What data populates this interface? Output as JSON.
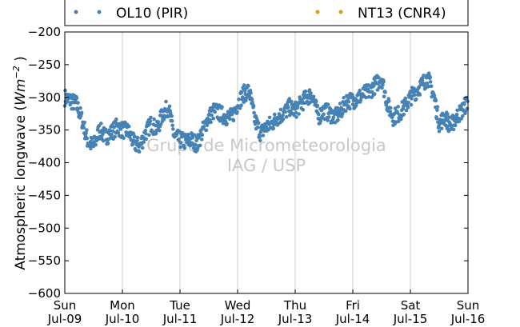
{
  "chart_data": {
    "type": "scatter",
    "ylabel": "Atmospheric longwave",
    "ylabel_unit_base": "Wm",
    "ylabel_unit_exp": "−2",
    "ylim": [
      -600,
      -200
    ],
    "yticks": [
      -200,
      -250,
      -300,
      -350,
      -400,
      -450,
      -500,
      -550,
      -600
    ],
    "xlim": [
      "2012-07-09",
      "2012-07-16"
    ],
    "xticks": [
      {
        "day": "Sun",
        "date": "Jul-09"
      },
      {
        "day": "Mon",
        "date": "Jul-10"
      },
      {
        "day": "Tue",
        "date": "Jul-11"
      },
      {
        "day": "Wed",
        "date": "Jul-12"
      },
      {
        "day": "Thu",
        "date": "Jul-13"
      },
      {
        "day": "Fri",
        "date": "Jul-14"
      },
      {
        "day": "Sat",
        "date": "Jul-15"
      },
      {
        "day": "Sun",
        "date": "Jul-16"
      }
    ],
    "grid": "vertical",
    "legend_position": "top",
    "watermark": [
      "Grupo de Micrometeorologia",
      "IAG / USP"
    ],
    "series": [
      {
        "name": "OL10 (PIR)",
        "color": "#4682b4",
        "x_day": [
          0.0,
          0.1,
          0.2,
          0.3,
          0.4,
          0.5,
          0.6,
          0.7,
          0.8,
          0.9,
          1.0,
          1.1,
          1.2,
          1.3,
          1.4,
          1.5,
          1.6,
          1.7,
          1.8,
          1.9,
          2.0,
          2.1,
          2.2,
          2.3,
          2.4,
          2.5,
          2.6,
          2.7,
          2.8,
          2.9,
          3.0,
          3.1,
          3.2,
          3.3,
          3.4,
          3.5,
          3.6,
          3.7,
          3.8,
          3.9,
          4.0,
          4.1,
          4.2,
          4.3,
          4.4,
          4.5,
          4.6,
          4.7,
          4.8,
          4.9,
          5.0,
          5.1,
          5.2,
          5.3,
          5.4,
          5.5,
          5.6,
          5.7,
          5.8,
          5.9,
          6.0,
          6.1,
          6.2,
          6.3,
          6.4,
          6.5,
          6.6,
          6.7,
          6.8,
          6.9,
          7.0
        ],
        "y": [
          -300,
          -305,
          -310,
          -335,
          -368,
          -375,
          -350,
          -360,
          -355,
          -345,
          -350,
          -352,
          -370,
          -375,
          -355,
          -340,
          -350,
          -325,
          -315,
          -360,
          -365,
          -368,
          -365,
          -372,
          -350,
          -330,
          -320,
          -325,
          -330,
          -330,
          -310,
          -295,
          -290,
          -335,
          -355,
          -345,
          -340,
          -330,
          -325,
          -315,
          -320,
          -310,
          -300,
          -295,
          -330,
          -320,
          -325,
          -330,
          -320,
          -305,
          -305,
          -300,
          -295,
          -290,
          -280,
          -270,
          -310,
          -330,
          -325,
          -315,
          -300,
          -290,
          -280,
          -270,
          -295,
          -340,
          -330,
          -345,
          -330,
          -320,
          -305
        ]
      },
      {
        "name": "NT13 (CNR4)",
        "color": "#d4a017",
        "x_day": [],
        "y": []
      }
    ]
  }
}
